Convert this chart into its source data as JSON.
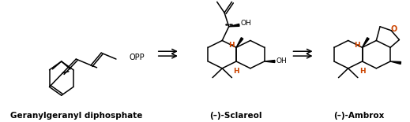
{
  "background_color": "#ffffff",
  "label1": "Geranylgeranyl diphosphate",
  "label2": "(–)-Sclareol",
  "label3": "(–)-Ambrox",
  "text_color": "#000000",
  "h_color": "#cc4400",
  "o_color": "#cc4400",
  "figsize": [
    5.19,
    1.55
  ],
  "dpi": 100,
  "label_fontsize": 7.5
}
